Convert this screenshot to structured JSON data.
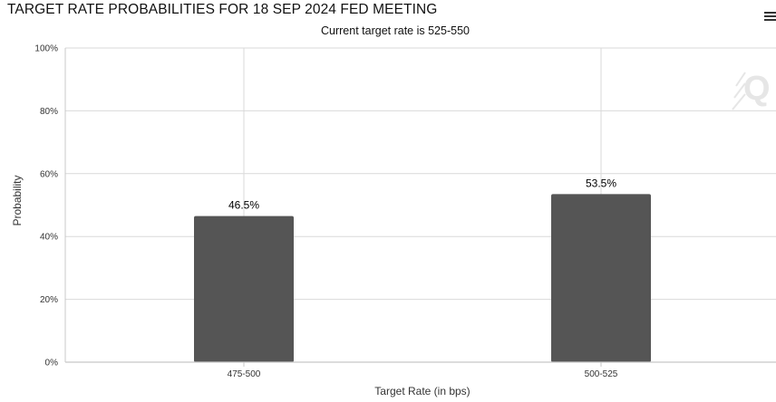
{
  "header": {
    "title": "TARGET RATE PROBABILITIES FOR 18 SEP 2024 FED MEETING",
    "subtitle": "Current target rate is 525-550"
  },
  "watermark": {
    "text": "Q"
  },
  "icons": {
    "menu": "hamburger-menu-icon"
  },
  "colors": {
    "bar": "#555555",
    "grid": "#d9d9d9",
    "axis": "#c8c8c8"
  },
  "chart_data": {
    "type": "bar",
    "categories": [
      "475-500",
      "500-525"
    ],
    "values": [
      46.5,
      53.5
    ],
    "data_labels": [
      "46.5%",
      "53.5%"
    ],
    "title": "TARGET RATE PROBABILITIES FOR 18 SEP 2024 FED MEETING",
    "subtitle": "Current target rate is 525-550",
    "xlabel": "Target Rate (in bps)",
    "ylabel": "Probability",
    "ylim": [
      0,
      100
    ],
    "yticks": [
      0,
      20,
      40,
      60,
      80,
      100
    ],
    "ytick_labels": [
      "0%",
      "20%",
      "40%",
      "60%",
      "80%",
      "100%"
    ],
    "grid": true,
    "legend": "none"
  }
}
